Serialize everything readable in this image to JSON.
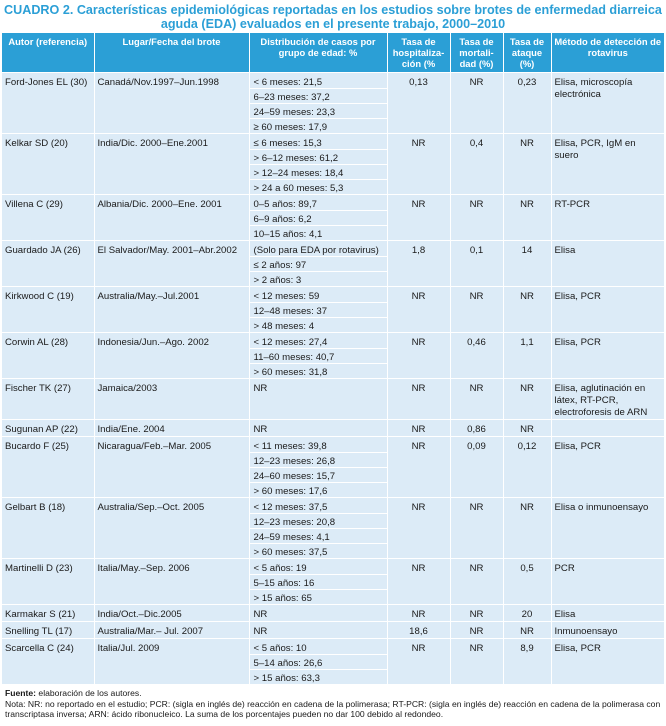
{
  "title": "CUADRO 2. Características epidemiológicas reportadas en los estudios sobre brotes de enfermedad diarreica aguda (EDA) evaluados en el presente trabajo, 2000–2010",
  "headers": {
    "autor": "Autor (referencia)",
    "lugar": "Lugar/Fecha del brote",
    "distribucion": "Distribución de casos por grupo de edad: %",
    "hosp": "Tasa de hospitaliza-ción (%",
    "mort": "Tasa de mortali-dad (%)",
    "ataque": "Tasa de ataque (%)",
    "metodo": "Método de detección de rotavirus"
  },
  "rows": [
    {
      "autor": "Ford-Jones EL (30)",
      "lugar": "Canadá/Nov.1997–Jun.1998",
      "dist": [
        "< 6 meses: 21,5",
        "6–23 meses: 37,2",
        "24–59 meses: 23,3",
        "≥ 60 meses: 17,9"
      ],
      "hosp": "0,13",
      "mort": "NR",
      "ataque": "0,23",
      "metodo": "Elisa, microscopía electrónica"
    },
    {
      "autor": "Kelkar SD (20)",
      "lugar": "India/Dic. 2000–Ene.2001",
      "dist": [
        "≤ 6 meses: 15,3",
        "> 6–12 meses: 61,2",
        "> 12–24 meses: 18,4",
        "> 24 a 60 meses: 5,3"
      ],
      "hosp": "NR",
      "mort": "0,4",
      "ataque": "NR",
      "metodo": "Elisa, PCR, IgM en suero"
    },
    {
      "autor": "Villena C (29)",
      "lugar": "Albania/Dic. 2000–Ene. 2001",
      "dist": [
        "0–5 años: 89,7",
        "6–9 años: 6,2",
        "10–15 años: 4,1"
      ],
      "hosp": "NR",
      "mort": "NR",
      "ataque": "NR",
      "metodo": "RT-PCR"
    },
    {
      "autor": "Guardado JA (26)",
      "lugar": "El Salvador/May. 2001–Abr.2002",
      "dist": [
        "(Solo para EDA por rotavirus)",
        "≤ 2 años: 97",
        "> 2 años: 3"
      ],
      "hosp": "1,8",
      "mort": "0,1",
      "ataque": "14",
      "metodo": "Elisa"
    },
    {
      "autor": "Kirkwood C (19)",
      "lugar": "Australia/May.–Jul.2001",
      "dist": [
        "< 12 meses: 59",
        "12–48 meses: 37",
        "> 48 meses: 4"
      ],
      "hosp": "NR",
      "mort": "NR",
      "ataque": "NR",
      "metodo": "Elisa, PCR"
    },
    {
      "autor": "Corwin AL (28)",
      "lugar": "Indonesia/Jun.–Ago. 2002",
      "dist": [
        "< 12 meses: 27,4",
        "11–60 meses: 40,7",
        "> 60 meses: 31,8"
      ],
      "hosp": "NR",
      "mort": "0,46",
      "ataque": "1,1",
      "metodo": "Elisa, PCR"
    },
    {
      "autor": "Fischer TK (27)",
      "lugar": "Jamaica/2003",
      "dist": [
        "NR"
      ],
      "hosp": "NR",
      "mort": "NR",
      "ataque": "NR",
      "metodo": "Elisa, aglutinación en látex, RT-PCR, electroforesis de ARN"
    },
    {
      "autor": "Sugunan AP (22)",
      "lugar": "India/Ene. 2004",
      "dist": [
        "NR"
      ],
      "hosp": "NR",
      "mort": "0,86",
      "ataque": "NR",
      "metodo": ""
    },
    {
      "autor": "Bucardo F (25)",
      "lugar": "Nicaragua/Feb.–Mar. 2005",
      "dist": [
        "< 11 meses: 39,8",
        "12–23 meses: 26,8",
        "24–60 meses: 15,7",
        "> 60 meses: 17,6"
      ],
      "hosp": "NR",
      "mort": "0,09",
      "ataque": "0,12",
      "metodo": "Elisa, PCR"
    },
    {
      "autor": "Gelbart B (18)",
      "lugar": "Australia/Sep.–Oct. 2005",
      "dist": [
        "< 12 meses: 37,5",
        "12–23 meses: 20,8",
        "24–59 meses: 4,1",
        "> 60 meses: 37,5"
      ],
      "hosp": "NR",
      "mort": "NR",
      "ataque": "NR",
      "metodo": "Elisa o inmunoensayo"
    },
    {
      "autor": "Martinelli D (23)",
      "lugar": "Italia/May.–Sep. 2006",
      "dist": [
        "< 5 años: 19",
        "5–15 años: 16",
        "> 15 años: 65"
      ],
      "hosp": "NR",
      "mort": "NR",
      "ataque": "0,5",
      "metodo": "PCR"
    },
    {
      "autor": "Karmakar S (21)",
      "lugar": "India/Oct.–Dic.2005",
      "dist": [
        "NR"
      ],
      "hosp": "NR",
      "mort": "NR",
      "ataque": "20",
      "metodo": "Elisa"
    },
    {
      "autor": "Snelling TL (17)",
      "lugar": "Australia/Mar.– Jul. 2007",
      "dist": [
        "NR"
      ],
      "hosp": "18,6",
      "mort": "NR",
      "ataque": "NR",
      "metodo": "Inmunoensayo"
    },
    {
      "autor": "Scarcella C (24)",
      "lugar": "Italia/Jul. 2009",
      "dist": [
        "< 5 años: 10",
        "5–14 años: 26,6",
        "> 15 años: 63,3"
      ],
      "hosp": "NR",
      "mort": "NR",
      "ataque": "8,9",
      "metodo": "Elisa, PCR"
    }
  ],
  "footer": {
    "fuente_label": "Fuente:",
    "fuente_text": " elaboración de los autores.",
    "nota": "Nota: NR: no reportado en el estudio; PCR: (sigla en inglés de) reacción en cadena de la polimerasa; RT-PCR: (sigla en inglés de) reacción en cadena de la polimerasa con transcriptasa inversa; ARN: ácido ribonucleico. La suma de los porcentajes pueden no dar 100 debido al redondeo."
  },
  "colors": {
    "accent": "#2b9fd6",
    "row_bg": "#dcebf7"
  }
}
